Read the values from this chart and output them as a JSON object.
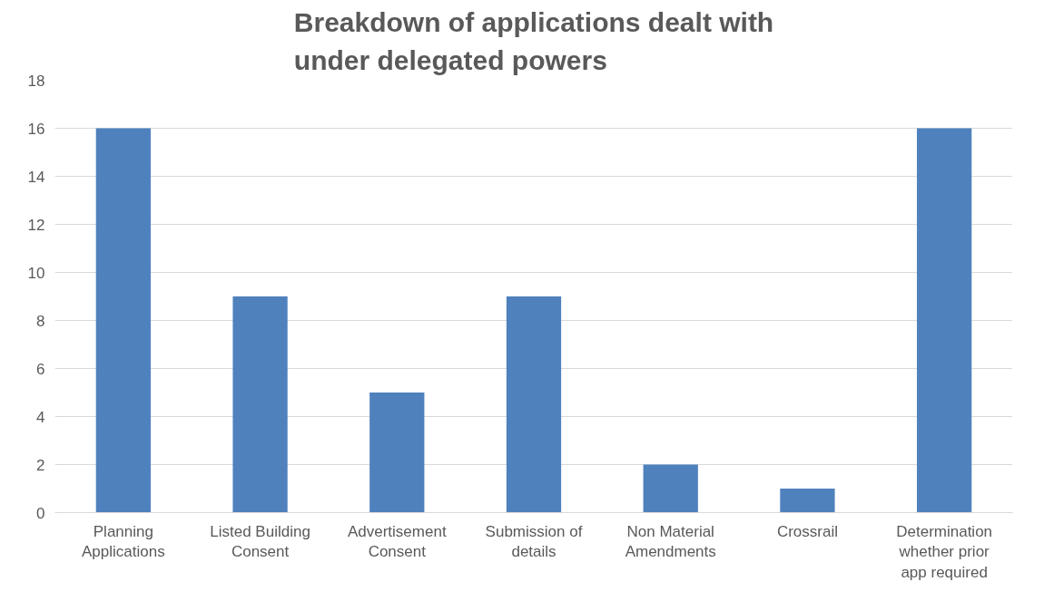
{
  "chart_data": {
    "type": "bar",
    "title": "Breakdown of applications dealt with under delegated powers",
    "categories": [
      "Planning Applications",
      "Listed Building Consent",
      "Advertisement Consent",
      "Submission of details",
      "Non Material Amendments",
      "Crossrail",
      "Determination whether prior app required"
    ],
    "values": [
      16,
      9,
      5,
      9,
      2,
      1,
      16
    ],
    "color": "#4f81bd",
    "ylim": [
      0,
      18
    ],
    "yticks": [
      0,
      2,
      4,
      6,
      8,
      10,
      12,
      14,
      16,
      18
    ],
    "grid": "y"
  }
}
